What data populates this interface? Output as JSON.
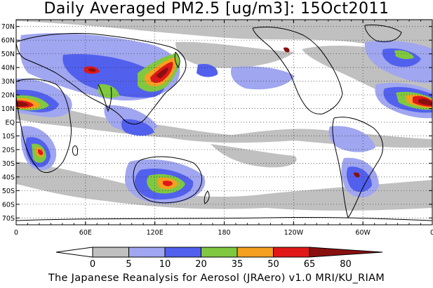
{
  "title": "Daily Averaged PM2.5 [ug/m3]: 15Oct2011",
  "footer": "The Japanese Reanalysis for Aerosol (JRAero) v1.0 MRI/KU_RIAM",
  "lat_labels": [
    "70N",
    "60N",
    "50N",
    "40N",
    "30N",
    "20N",
    "10N",
    "EQ",
    "10S",
    "20S",
    "30S",
    "40S",
    "50S",
    "60S",
    "70S"
  ],
  "lon_labels": [
    "0",
    "60E",
    "120E",
    "180",
    "120W",
    "60W",
    "0"
  ],
  "colorbar": {
    "ticks": [
      "0",
      "5",
      "10",
      "20",
      "35",
      "50",
      "65",
      "80"
    ],
    "colors": [
      "#ffffff",
      "#c0c0c0",
      "#a0a6ef",
      "#5260ee",
      "#80c840",
      "#f5a020",
      "#e01818",
      "#8a1010"
    ]
  },
  "chart_data": {
    "type": "heatmap",
    "title": "Daily Averaged PM2.5 [ug/m3]: 15Oct2011",
    "xlabel": "",
    "ylabel": "",
    "xlim": [
      "0",
      "0"
    ],
    "ylim": [
      "70S",
      "70N"
    ],
    "color_levels": [
      0,
      5,
      10,
      20,
      35,
      50,
      65,
      80
    ],
    "projection": "equirectangular",
    "grid": true
  }
}
